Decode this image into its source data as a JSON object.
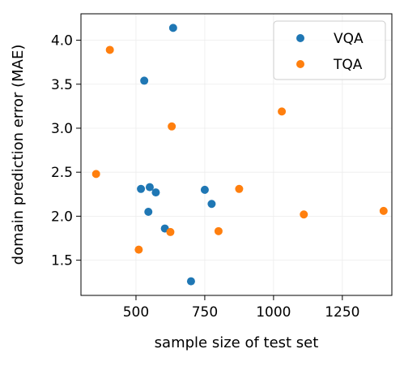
{
  "chart_data": {
    "type": "scatter",
    "title": "",
    "xlabel": "sample size of test set",
    "ylabel": "domain prediction error (MAE)",
    "xlim": [
      300,
      1430
    ],
    "ylim": [
      1.1,
      4.3
    ],
    "xticks": [
      500,
      750,
      1000,
      1250
    ],
    "yticks": [
      1.5,
      2.0,
      2.5,
      3.0,
      3.5,
      4.0
    ],
    "xtick_labels": [
      "500",
      "750",
      "1000",
      "1250"
    ],
    "ytick_labels": [
      "1.5",
      "2.0",
      "2.5",
      "3.0",
      "3.5",
      "4.0"
    ],
    "grid": true,
    "legend_position": "top-right",
    "series": [
      {
        "name": "VQA",
        "color": "#1f77b4",
        "points": [
          {
            "x": 635,
            "y": 4.14
          },
          {
            "x": 530,
            "y": 3.54
          },
          {
            "x": 518,
            "y": 2.31
          },
          {
            "x": 550,
            "y": 2.33
          },
          {
            "x": 572,
            "y": 2.27
          },
          {
            "x": 545,
            "y": 2.05
          },
          {
            "x": 605,
            "y": 1.86
          },
          {
            "x": 750,
            "y": 2.3
          },
          {
            "x": 775,
            "y": 2.14
          },
          {
            "x": 700,
            "y": 1.26
          }
        ]
      },
      {
        "name": "TQA",
        "color": "#ff7f0e",
        "points": [
          {
            "x": 405,
            "y": 3.89
          },
          {
            "x": 630,
            "y": 3.02
          },
          {
            "x": 355,
            "y": 2.48
          },
          {
            "x": 875,
            "y": 2.31
          },
          {
            "x": 1030,
            "y": 3.19
          },
          {
            "x": 1110,
            "y": 2.02
          },
          {
            "x": 1400,
            "y": 2.06
          },
          {
            "x": 625,
            "y": 1.82
          },
          {
            "x": 800,
            "y": 1.83
          },
          {
            "x": 510,
            "y": 1.62
          }
        ]
      }
    ]
  }
}
